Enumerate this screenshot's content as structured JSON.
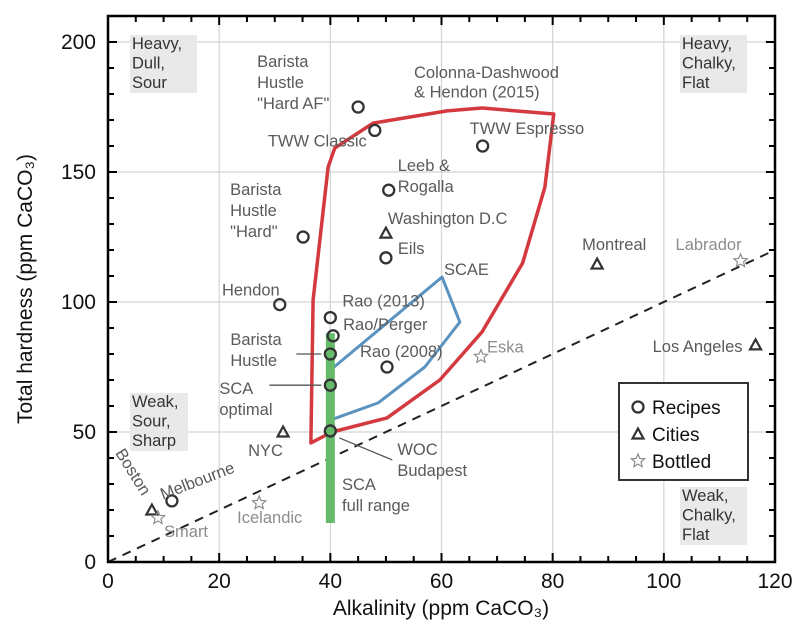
{
  "chart_data": {
    "type": "scatter",
    "xlabel": "Alkalinity (ppm CaCO₃)",
    "ylabel": "Total hardness (ppm CaCO₃)",
    "xlim": [
      0,
      120
    ],
    "ylim": [
      0,
      210
    ],
    "xticks": [
      0,
      20,
      40,
      60,
      80,
      100,
      120
    ],
    "yticks": [
      0,
      50,
      100,
      150,
      200
    ],
    "grid": true,
    "legend": {
      "placement": "bottom-right",
      "entries": [
        "Recipes",
        "Cities",
        "Bottled"
      ]
    },
    "series": [
      {
        "name": "Recipes",
        "marker": "circle",
        "color": "#333333",
        "points": [
          {
            "label": "Barista\nHustle\n\"Hard AF\"",
            "x": 45,
            "y": 175
          },
          {
            "label": "TWW Classic",
            "x": 48,
            "y": 166
          },
          {
            "label": "TWW Espresso",
            "x": 67.4,
            "y": 160
          },
          {
            "label": "Leeb &\nRogalla",
            "x": 50.5,
            "y": 143
          },
          {
            "label": "Barista\nHustle\n\"Hard\"",
            "x": 35.1,
            "y": 125
          },
          {
            "label": "Eils",
            "x": 50,
            "y": 117
          },
          {
            "label": "Hendon",
            "x": 30.9,
            "y": 99
          },
          {
            "label": "Rao (2013)",
            "x": 40,
            "y": 94
          },
          {
            "label": "Rao/Perger",
            "x": 40.5,
            "y": 87
          },
          {
            "label": "Barista\nHustle",
            "x": 40,
            "y": 80
          },
          {
            "label": "Rao (2008)",
            "x": 50.2,
            "y": 75
          },
          {
            "label": "SCA\noptimal",
            "x": 40,
            "y": 68
          },
          {
            "label": "WOC\nBudapest",
            "x": 40,
            "y": 50.4
          },
          {
            "label": "Melbourne",
            "x": 11.5,
            "y": 23.5
          }
        ]
      },
      {
        "name": "Cities",
        "marker": "triangle",
        "color": "#333333",
        "points": [
          {
            "label": "Washington D.C",
            "x": 50,
            "y": 126.5
          },
          {
            "label": "Montreal",
            "x": 88,
            "y": 114.6
          },
          {
            "label": "Los Angeles",
            "x": 116.5,
            "y": 83.5
          },
          {
            "label": "NYC",
            "x": 31.5,
            "y": 50
          },
          {
            "label": "Boston",
            "x": 7.9,
            "y": 20
          }
        ]
      },
      {
        "name": "Bottled",
        "marker": "star",
        "color": "#8c8c8c",
        "points": [
          {
            "label": "Labrador",
            "x": 113.8,
            "y": 115.8
          },
          {
            "label": "Eska",
            "x": 67.1,
            "y": 79
          },
          {
            "label": "Icelandic",
            "x": 27.2,
            "y": 22.7
          },
          {
            "label": "Smart",
            "x": 9,
            "y": 17
          }
        ]
      }
    ],
    "regions": [
      {
        "label": "Colonna-Dashwood\n& Hendon (2015)",
        "color": "#d3393e",
        "polygon": [
          [
            36.5,
            45.8
          ],
          [
            36.9,
            100.8
          ],
          [
            39.6,
            151.9
          ],
          [
            40.8,
            159.2
          ],
          [
            47.7,
            168.8
          ],
          [
            61,
            173.5
          ],
          [
            67.3,
            174.6
          ],
          [
            80.2,
            172.3
          ],
          [
            78.6,
            144.2
          ],
          [
            74.6,
            115
          ],
          [
            67.3,
            88.5
          ],
          [
            59.7,
            70
          ],
          [
            50.2,
            55.4
          ],
          [
            40.3,
            50
          ]
        ]
      },
      {
        "label": "SCAE",
        "color": "#5b93c0",
        "polygon": [
          [
            40,
            73.8
          ],
          [
            60.1,
            109.6
          ],
          [
            63.3,
            92.3
          ],
          [
            57,
            75
          ],
          [
            48.6,
            61.2
          ],
          [
            40,
            54.6
          ]
        ]
      }
    ],
    "range_bar": {
      "label": "SCA\nfull range",
      "color": "#66bb6a",
      "x": 40,
      "y_min": 15,
      "y_max": 88
    },
    "reference_line": {
      "style": "dashed",
      "color": "#222222",
      "from": [
        0,
        0
      ],
      "to": [
        120,
        120
      ]
    },
    "quadrant_labels": [
      {
        "text": "Heavy,\nDull,\nSour",
        "corner": "top-left"
      },
      {
        "text": "Heavy,\nChalky,\nFlat",
        "corner": "top-right"
      },
      {
        "text": "Weak,\nSour,\nSharp",
        "corner": "left"
      },
      {
        "text": "Weak,\nChalky,\nFlat",
        "corner": "bottom-right"
      }
    ]
  }
}
